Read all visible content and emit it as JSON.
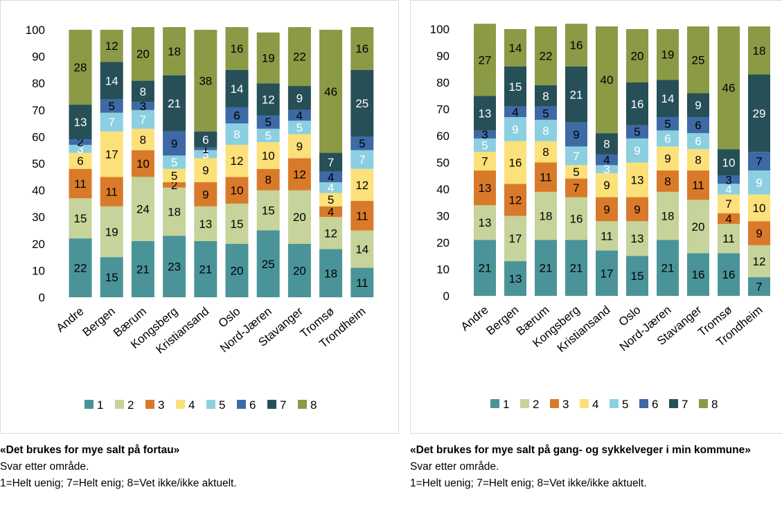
{
  "colors": {
    "1": "#4a9499",
    "2": "#c6d39a",
    "3": "#d97a2a",
    "4": "#fce07a",
    "5": "#8ccfe0",
    "6": "#3d6aa5",
    "7": "#274f57",
    "8": "#8a9a45"
  },
  "chart_data": [
    {
      "type": "bar",
      "stacked": true,
      "title": "",
      "xlabel": "",
      "ylabel": "",
      "ylim": [
        0,
        100
      ],
      "yticks": [
        0,
        10,
        20,
        30,
        40,
        50,
        60,
        70,
        80,
        90,
        100
      ],
      "grid": false,
      "legend_position": "bottom",
      "categories": [
        "Andre",
        "Bergen",
        "Bærum",
        "Kongsberg",
        "Kristiansand",
        "Oslo",
        "Nord-Jæren",
        "Stavanger",
        "Tromsø",
        "Trondheim"
      ],
      "series": [
        {
          "name": "1",
          "values": [
            22,
            15,
            21,
            23,
            21,
            20,
            25,
            20,
            18,
            11
          ]
        },
        {
          "name": "2",
          "values": [
            15,
            19,
            24,
            18,
            13,
            15,
            15,
            20,
            12,
            14
          ]
        },
        {
          "name": "3",
          "values": [
            11,
            11,
            10,
            2,
            9,
            10,
            8,
            12,
            4,
            11
          ]
        },
        {
          "name": "4",
          "values": [
            6,
            17,
            8,
            5,
            9,
            12,
            10,
            9,
            5,
            12
          ]
        },
        {
          "name": "5",
          "values": [
            3,
            7,
            7,
            5,
            3,
            8,
            5,
            5,
            4,
            7
          ]
        },
        {
          "name": "6",
          "values": [
            2,
            5,
            3,
            9,
            1,
            6,
            5,
            4,
            4,
            5
          ]
        },
        {
          "name": "7",
          "values": [
            13,
            14,
            8,
            21,
            6,
            14,
            12,
            9,
            7,
            25
          ]
        },
        {
          "name": "8",
          "values": [
            28,
            12,
            20,
            18,
            38,
            16,
            19,
            22,
            46,
            16
          ]
        }
      ]
    },
    {
      "type": "bar",
      "stacked": true,
      "title": "",
      "xlabel": "",
      "ylabel": "",
      "ylim": [
        0,
        100
      ],
      "yticks": [
        0,
        10,
        20,
        30,
        40,
        50,
        60,
        70,
        80,
        90,
        100
      ],
      "grid": false,
      "legend_position": "bottom",
      "categories": [
        "Andre",
        "Bergen",
        "Bærum",
        "Kongsberg",
        "Kristiansand",
        "Oslo",
        "Nord-Jæren",
        "Stavanger",
        "Tromsø",
        "Trondheim"
      ],
      "series": [
        {
          "name": "1",
          "values": [
            21,
            13,
            21,
            21,
            17,
            15,
            21,
            16,
            16,
            7
          ]
        },
        {
          "name": "2",
          "values": [
            13,
            17,
            18,
            16,
            11,
            13,
            18,
            20,
            11,
            12
          ]
        },
        {
          "name": "3",
          "values": [
            13,
            12,
            11,
            7,
            9,
            9,
            8,
            11,
            4,
            9
          ]
        },
        {
          "name": "4",
          "values": [
            7,
            16,
            8,
            5,
            9,
            13,
            9,
            8,
            7,
            10
          ]
        },
        {
          "name": "5",
          "values": [
            5,
            9,
            8,
            7,
            3,
            9,
            6,
            6,
            4,
            9
          ]
        },
        {
          "name": "6",
          "values": [
            3,
            4,
            5,
            9,
            4,
            5,
            5,
            6,
            3,
            7
          ]
        },
        {
          "name": "7",
          "values": [
            13,
            15,
            8,
            21,
            8,
            16,
            14,
            9,
            10,
            29
          ]
        },
        {
          "name": "8",
          "values": [
            27,
            14,
            22,
            16,
            40,
            20,
            19,
            25,
            46,
            18
          ]
        }
      ]
    }
  ],
  "captions": [
    {
      "title": "«Det brukes for mye salt på fortau»",
      "line1": "Svar etter område.",
      "line2": "1=Helt uenig; 7=Helt enig; 8=Vet ikke/ikke aktuelt."
    },
    {
      "title": "«Det brukes for mye salt på gang- og sykkelveger i min kommune»",
      "line1": "Svar etter område.",
      "line2": "1=Helt uenig; 7=Helt enig; 8=Vet ikke/ikke aktuelt."
    }
  ]
}
